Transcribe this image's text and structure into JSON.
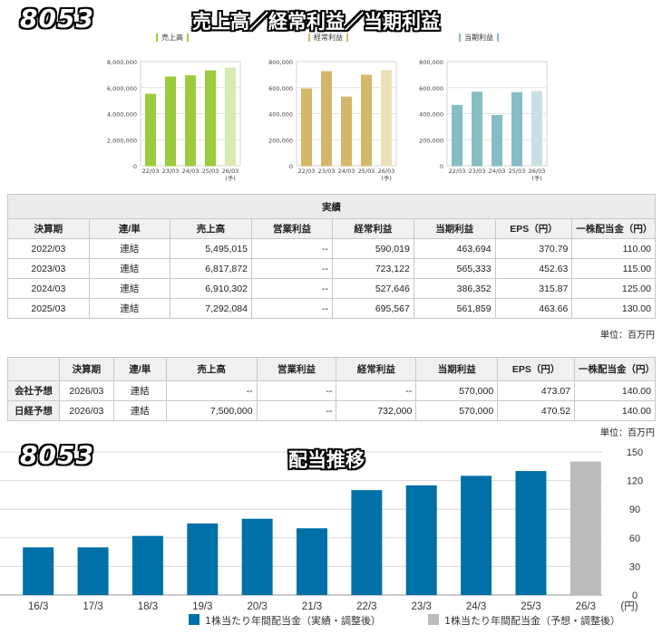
{
  "header": {
    "code": "8053",
    "title": "売上高／経常利益／当期利益"
  },
  "mini_charts": [
    {
      "legend": "売上高",
      "color": "#9ccb3e",
      "forecast_color": "#d7eab0",
      "y_ticks": [
        "8,000,000",
        "6,000,000",
        "4,000,000",
        "2,000,000",
        "0"
      ],
      "ylim": [
        0,
        8000000
      ],
      "categories": [
        "22/03",
        "23/03",
        "24/03",
        "25/03",
        "26/03"
      ],
      "forecast_label": "(予)",
      "values": [
        5495015,
        6817872,
        6910302,
        7292084,
        7500000
      ]
    },
    {
      "legend": "経常利益",
      "color": "#d4b768",
      "forecast_color": "#ece0b6",
      "y_ticks": [
        "800,000",
        "600,000",
        "400,000",
        "200,000",
        "0"
      ],
      "ylim": [
        0,
        800000
      ],
      "categories": [
        "22/03",
        "23/03",
        "24/03",
        "25/03",
        "26/03"
      ],
      "forecast_label": "(予)",
      "values": [
        590019,
        723122,
        527646,
        695567,
        732000
      ]
    },
    {
      "legend": "当期利益",
      "color": "#86bcc4",
      "forecast_color": "#c7e0e3",
      "y_ticks": [
        "800,000",
        "600,000",
        "400,000",
        "200,000",
        "0"
      ],
      "ylim": [
        0,
        800000
      ],
      "categories": [
        "22/03",
        "23/03",
        "24/03",
        "25/03",
        "26/03"
      ],
      "forecast_label": "(予)",
      "values": [
        463694,
        565333,
        386352,
        561859,
        570000
      ]
    }
  ],
  "results_table": {
    "group_header": "実績",
    "headers": [
      "決算期",
      "連/単",
      "売上高",
      "営業利益",
      "経常利益",
      "当期利益",
      "EPS（円）",
      "一株配当金（円）"
    ],
    "rows": [
      [
        "2022/03",
        "連結",
        "5,495,015",
        "--",
        "590,019",
        "463,694",
        "370.79",
        "110.00"
      ],
      [
        "2023/03",
        "連結",
        "6,817,872",
        "--",
        "723,122",
        "565,333",
        "452.63",
        "115.00"
      ],
      [
        "2024/03",
        "連結",
        "6,910,302",
        "--",
        "527,646",
        "386,352",
        "315.87",
        "125.00"
      ],
      [
        "2025/03",
        "連結",
        "7,292,084",
        "--",
        "695,567",
        "561,859",
        "463.66",
        "130.00"
      ]
    ],
    "unit": "単位：百万円"
  },
  "forecast_table": {
    "headers": [
      "",
      "決算期",
      "連/単",
      "売上高",
      "営業利益",
      "経常利益",
      "当期利益",
      "EPS（円）",
      "一株配当金（円）"
    ],
    "rows": [
      [
        "会社予想",
        "2026/03",
        "連結",
        "--",
        "--",
        "--",
        "570,000",
        "473.07",
        "140.00"
      ],
      [
        "日経予想",
        "2026/03",
        "連結",
        "7,500,000",
        "--",
        "732,000",
        "570,000",
        "470.52",
        "140.00"
      ]
    ],
    "unit": "単位：百万円"
  },
  "chart_data": {
    "type": "bar",
    "title": "配当推移",
    "code": "8053",
    "categories": [
      "16/3",
      "17/3",
      "18/3",
      "19/3",
      "20/3",
      "21/3",
      "22/3",
      "23/3",
      "24/3",
      "25/3",
      "26/3"
    ],
    "x_unit": "(円)",
    "values": [
      50,
      50,
      62,
      75,
      80,
      70,
      110,
      115,
      125,
      130,
      140
    ],
    "forecast_flags": [
      false,
      false,
      false,
      false,
      false,
      false,
      false,
      false,
      false,
      false,
      true
    ],
    "ylim": [
      0,
      150
    ],
    "y_ticks": [
      0,
      30,
      60,
      90,
      120,
      150
    ],
    "grid": true,
    "legend_position": "bottom",
    "series": [
      {
        "name": "1株当たり年間配当金（実績・調整後）",
        "color": "#0070a8"
      },
      {
        "name": "1株当たり年間配当金（予想・調整後）",
        "color": "#bbbbbb"
      }
    ]
  }
}
